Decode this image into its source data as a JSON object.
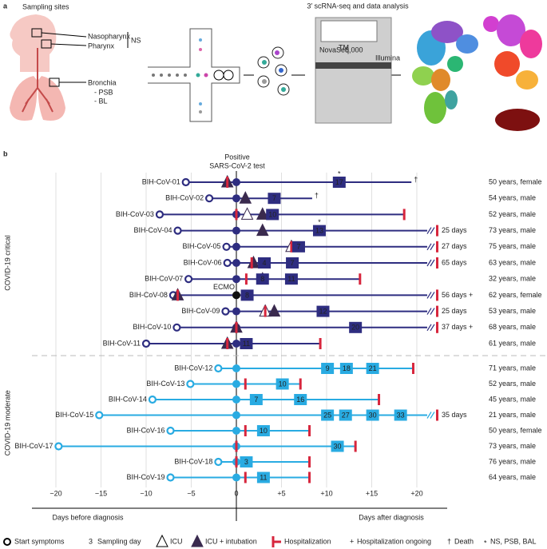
{
  "panel_a": {
    "letter": "a",
    "sampling_title": "Sampling sites",
    "nasopharynx": "Nasopharynx",
    "pharynx": "Pharynx",
    "ns": "NS",
    "bronchia": "Bronchia",
    "psb": "- PSB",
    "bl": "- BL",
    "analysis_title": "3′ scRNA-seq and data analysis",
    "novaseq": "NovaSeq",
    "tm": "TM",
    "model": "6,000",
    "illumina": "Illumina"
  },
  "panel_b": {
    "letter": "b",
    "test_line1": "Positive",
    "test_line2": "SARS-CoV-2 test",
    "diagnosis_day": 0,
    "xlim": [
      -20,
      20
    ],
    "xticks": [
      {
        "value": -20,
        "label": "−20"
      },
      {
        "value": -15,
        "label": "−15"
      },
      {
        "value": -10,
        "label": "−10"
      },
      {
        "value": -5,
        "label": "−5"
      },
      {
        "value": 0,
        "label": "0"
      },
      {
        "value": 5,
        "label": "+5"
      },
      {
        "value": 10,
        "label": "+10"
      },
      {
        "value": 15,
        "label": "+15"
      },
      {
        "value": 20,
        "label": "+20"
      }
    ],
    "before_label": "Days before diagnosis",
    "after_label": "Days after diagnosis",
    "groups": [
      {
        "label": "COVID-19 critical",
        "color": "#2e2d80",
        "patients": [
          {
            "id": "BIH-CoV-01",
            "onset": -5.6,
            "hosp": -1,
            "end": 19.4,
            "icu": [
              {
                "day": -1,
                "type": "intubation"
              }
            ],
            "samples": [
              {
                "day": 11.4,
                "label": 17
              }
            ],
            "star": "*",
            "death": "†",
            "info": "50 years, female"
          },
          {
            "id": "BIH-CoV-02",
            "onset": -3.0,
            "hosp": null,
            "end": 8.4,
            "icu": [
              {
                "day": 1,
                "type": "intubation"
              }
            ],
            "samples": [
              {
                "day": 4.2,
                "label": 7
              }
            ],
            "death": "†",
            "info": "54 years, male"
          },
          {
            "id": "BIH-CoV-03",
            "onset": -8.5,
            "hosp": 0,
            "end": 18.6,
            "icu": [
              {
                "day": 1.2,
                "type": "icu"
              },
              {
                "day": 2.9,
                "type": "intubation"
              }
            ],
            "samples": [
              {
                "day": 4,
                "label": 10
              }
            ],
            "info": "52 years, male"
          },
          {
            "id": "BIH-CoV-04",
            "onset": -6.5,
            "hosp": null,
            "end": null,
            "icu": [
              {
                "day": 2.9,
                "type": "intubation"
              }
            ],
            "samples": [
              {
                "day": 9.2,
                "label": 13
              }
            ],
            "star": "*",
            "outcome": "25 days",
            "info": "73 years, male"
          },
          {
            "id": "BIH-CoV-05",
            "onset": -1.1,
            "hosp": 6.1,
            "end": null,
            "icu": [
              {
                "day": 6.1,
                "type": "icu"
              }
            ],
            "samples": [
              {
                "day": 6.9,
                "label": 7
              }
            ],
            "outcome": "27 days",
            "info": "75 years, male"
          },
          {
            "id": "BIH-CoV-06",
            "onset": -1.0,
            "hosp": 1.7,
            "end": null,
            "icu": [
              {
                "day": 1.9,
                "type": "intubation"
              }
            ],
            "samples": [
              {
                "day": 3.1,
                "label": 4
              },
              {
                "day": 6.2,
                "label": 7
              }
            ],
            "outcome": "65 days",
            "info": "63 years, male"
          },
          {
            "id": "BIH-CoV-07",
            "onset": -5.3,
            "hosp": 1.1,
            "end": 13.7,
            "icu": [
              {
                "day": 2.9,
                "type": "icu"
              }
            ],
            "samples": [
              {
                "day": 2.9,
                "label": 8
              },
              {
                "day": 6.1,
                "label": 11
              }
            ],
            "info": "32 years, male"
          },
          {
            "id": "BIH-CoV-08",
            "onset": -7,
            "hosp": -6.5,
            "end": null,
            "icu": [
              {
                "day": -6.5,
                "type": "intubation"
              }
            ],
            "ecmo": "ECMO",
            "samples": [
              {
                "day": 1.2,
                "label": 8
              }
            ],
            "outcome": "56 days +",
            "info": "62 years, female"
          },
          {
            "id": "BIH-CoV-09",
            "onset": -1.2,
            "hosp": 3.2,
            "end": null,
            "icu": [
              {
                "day": 3.2,
                "type": "icu"
              },
              {
                "day": 4.2,
                "type": "intubation"
              }
            ],
            "samples": [
              {
                "day": 9.6,
                "label": 12
              }
            ],
            "outcome": "25 days",
            "info": "53 years, male"
          },
          {
            "id": "BIH-CoV-10",
            "onset": -6.6,
            "hosp": 0,
            "end": null,
            "icu": [
              {
                "day": 0,
                "type": "intubation"
              }
            ],
            "samples": [
              {
                "day": 13.2,
                "label": 20
              }
            ],
            "outcome": "37 days +",
            "info": "68 years, male"
          },
          {
            "id": "BIH-CoV-11",
            "onset": -10,
            "hosp": -1,
            "end": 9.3,
            "icu": [
              {
                "day": -1,
                "type": "intubation"
              }
            ],
            "samples": [
              {
                "day": 1.1,
                "label": 11
              }
            ],
            "info": "61 years, male"
          }
        ]
      },
      {
        "label": "COVID-19 moderate",
        "color": "#29abe2",
        "patients": [
          {
            "id": "BIH-CoV-12",
            "onset": -2,
            "hosp": 9.8,
            "end": 19.6,
            "icu": [],
            "samples": [
              {
                "day": 10.1,
                "label": 9
              },
              {
                "day": 12.2,
                "label": 18
              },
              {
                "day": 15.1,
                "label": 21
              }
            ],
            "info": "71 years, male"
          },
          {
            "id": "BIH-CoV-13",
            "onset": -5.1,
            "hosp": 1,
            "end": 7.1,
            "icu": [],
            "samples": [
              {
                "day": 5.1,
                "label": 10
              }
            ],
            "info": "52 years, male"
          },
          {
            "id": "BIH-CoV-14",
            "onset": -9.3,
            "hosp": 1.9,
            "end": 15.8,
            "icu": [],
            "samples": [
              {
                "day": 2.2,
                "label": 7
              },
              {
                "day": 7.1,
                "label": 16
              }
            ],
            "info": "45 years, male"
          },
          {
            "id": "BIH-CoV-15",
            "onset": -15.2,
            "hosp": null,
            "end": null,
            "icu": [],
            "samples": [
              {
                "day": 10.1,
                "label": 25
              },
              {
                "day": 12.1,
                "label": 27
              },
              {
                "day": 15.1,
                "label": 30
              },
              {
                "day": 18.2,
                "label": 33
              }
            ],
            "outcome": "35 days",
            "info": "21 years, male"
          },
          {
            "id": "BIH-CoV-16",
            "onset": -7.3,
            "hosp": 1,
            "end": 8.1,
            "icu": [],
            "samples": [
              {
                "day": 3,
                "label": 10
              }
            ],
            "info": "50 years, female"
          },
          {
            "id": "BIH-CoV-17",
            "onset": -19.7,
            "hosp": 0,
            "end": 13.2,
            "icu": [],
            "samples": [
              {
                "day": 11.2,
                "label": 30
              }
            ],
            "info": "73 years, male"
          },
          {
            "id": "BIH-CoV-18",
            "onset": -2,
            "hosp": 0,
            "end": 8.1,
            "icu": [],
            "samples": [
              {
                "day": 1.1,
                "label": 3
              }
            ],
            "info": "76 years, male"
          },
          {
            "id": "BIH-CoV-19",
            "onset": -7.3,
            "hosp": 1,
            "end": 8.1,
            "icu": [],
            "samples": [
              {
                "day": 3,
                "label": 11
              }
            ],
            "info": "64 years, male"
          }
        ]
      }
    ],
    "legend": {
      "start": "Start symptoms",
      "sample_symbol": "3",
      "sample": "Sampling day",
      "icu": "ICU",
      "intubation": "ICU + intubation",
      "hosp": "Hospitalization",
      "ongoing_symbol": "+",
      "ongoing": "Hospitalization ongoing",
      "death_symbol": "†",
      "death": "Death",
      "star_symbol": "*",
      "star": "NS, PSB, BAL"
    }
  }
}
